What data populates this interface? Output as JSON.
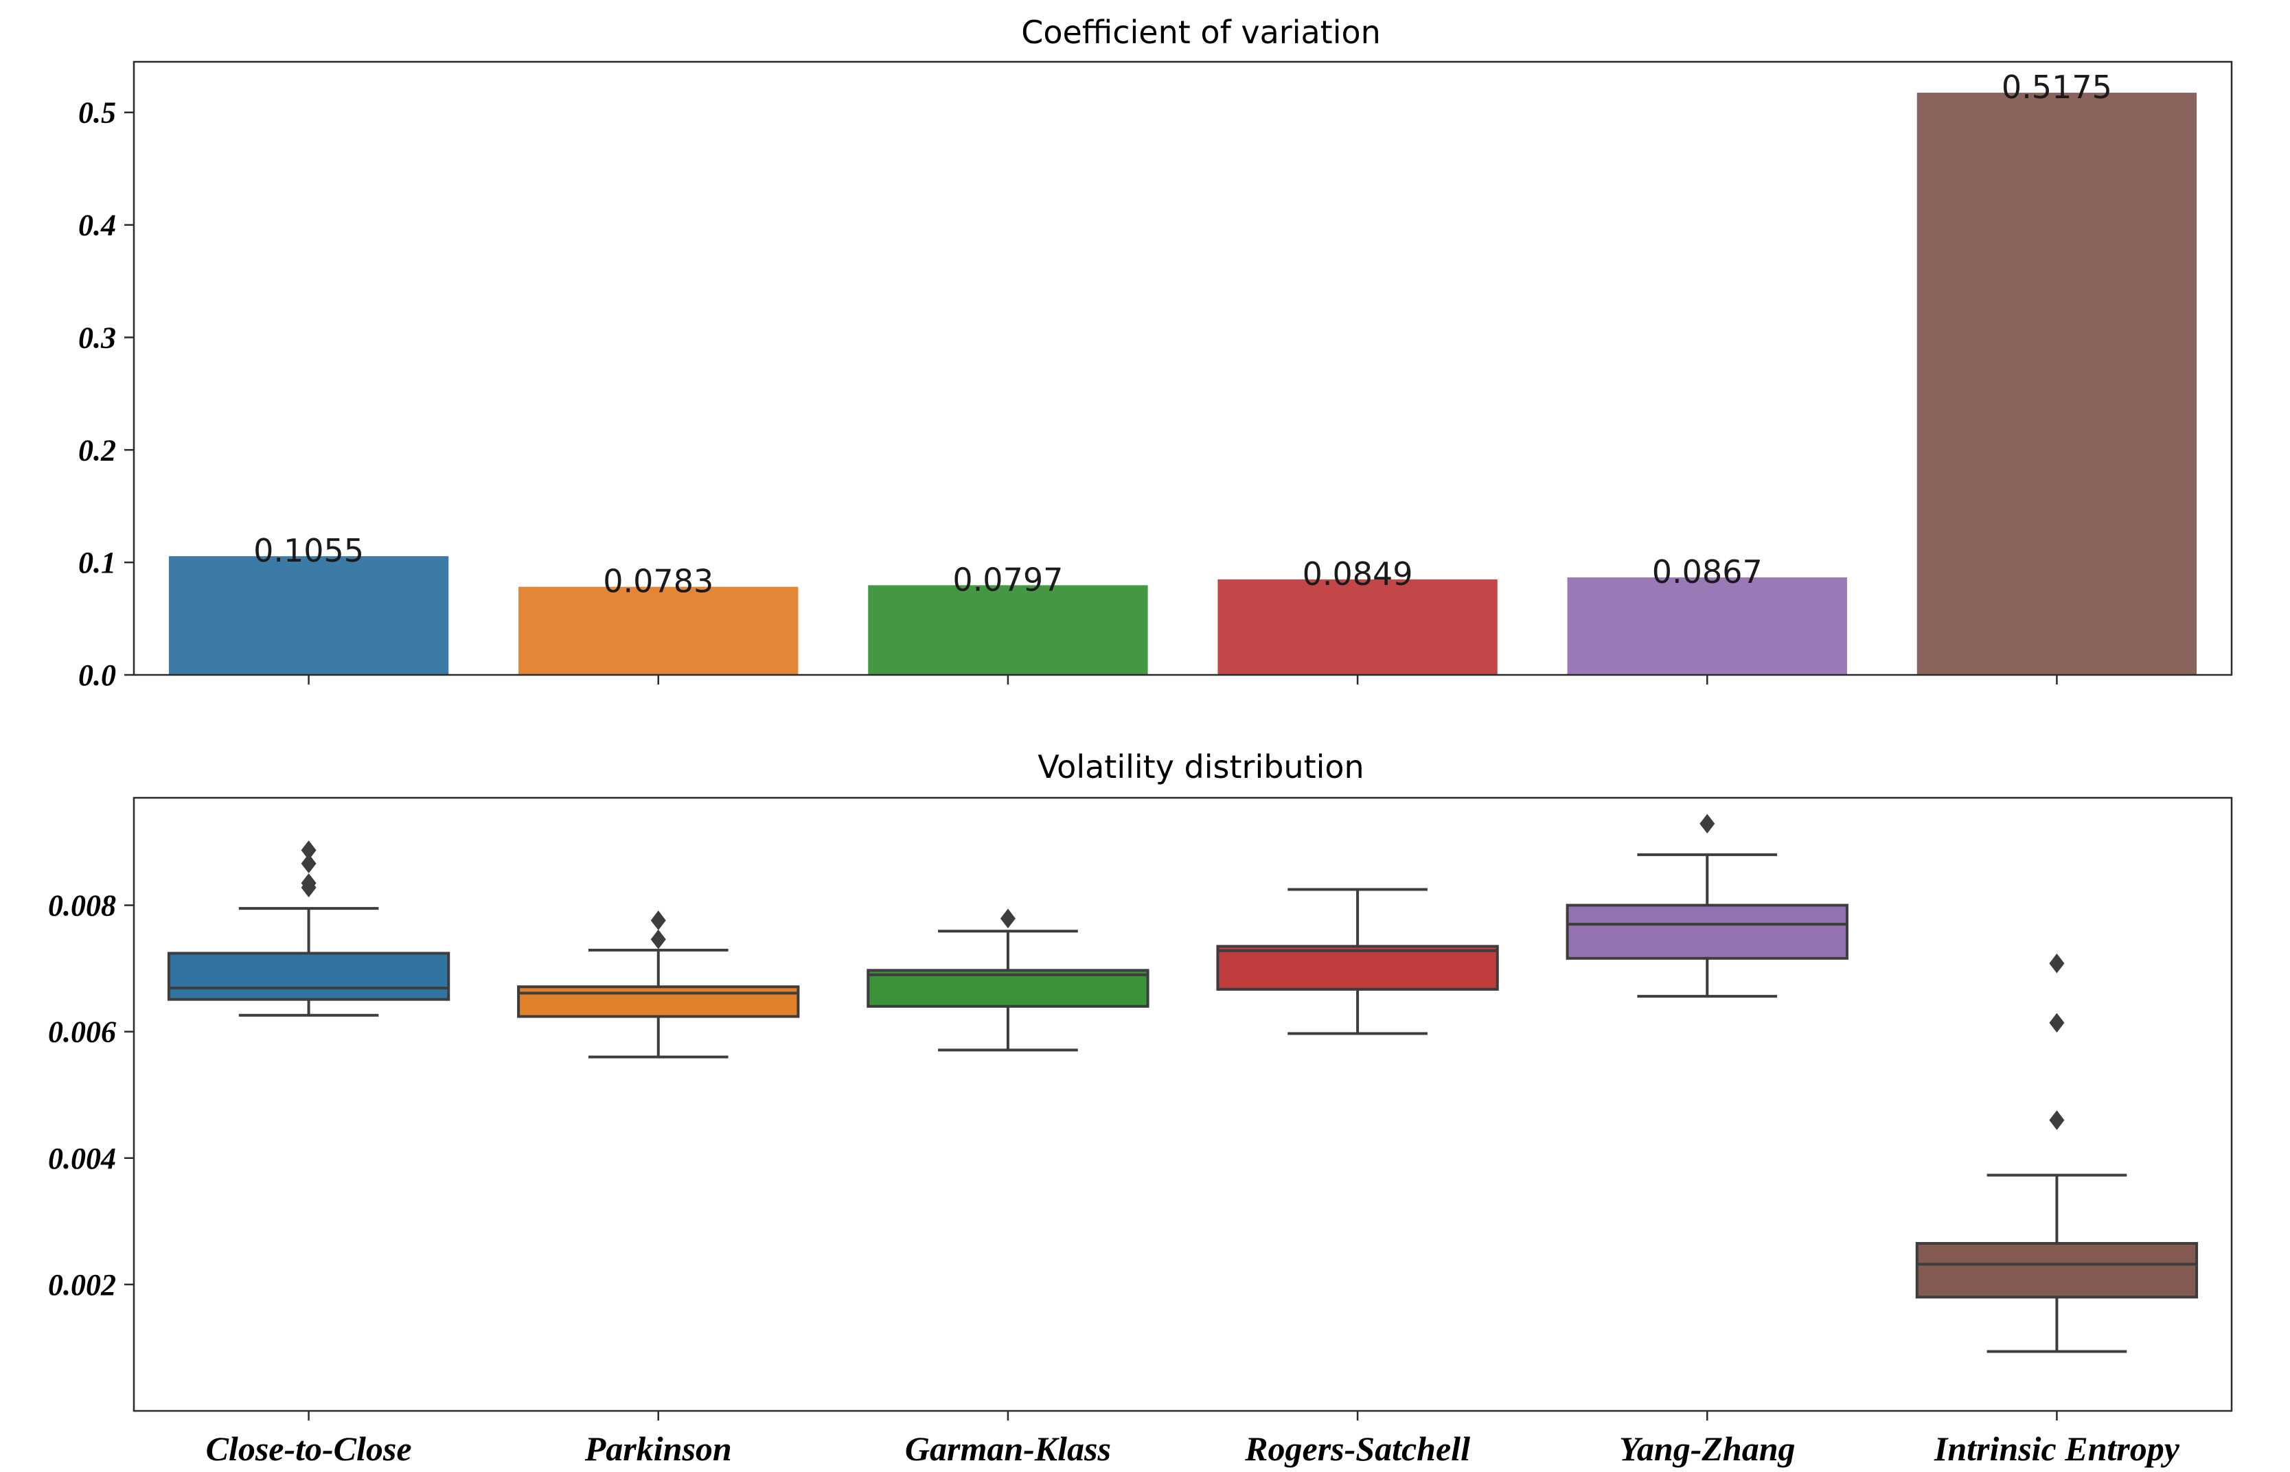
{
  "colors": [
    "#3274a1",
    "#e1812c",
    "#3a923a",
    "#c03d3e",
    "#9372b2",
    "#845b53"
  ],
  "chart_data": [
    {
      "type": "bar",
      "title": "Coefficient of variation",
      "categories": [
        "Close-to-Close",
        "Parkinson",
        "Garman-Klass",
        "Rogers-Satchell",
        "Yang-Zhang",
        "Intrinsic Entropy"
      ],
      "values": [
        0.1055,
        0.0783,
        0.0797,
        0.0849,
        0.0867,
        0.5175
      ],
      "value_labels": [
        "0.1055",
        "0.0783",
        "0.0797",
        "0.0849",
        "0.0867",
        "0.5175"
      ],
      "yticks": [
        "0.0",
        "0.1",
        "0.2",
        "0.3",
        "0.4",
        "0.5"
      ],
      "ylim": [
        0,
        0.545
      ],
      "xlabel": "",
      "ylabel": "",
      "grid": false
    },
    {
      "type": "box",
      "title": "Volatility distribution",
      "categories": [
        "Close-to-Close",
        "Parkinson",
        "Garman-Klass",
        "Rogers-Satchell",
        "Yang-Zhang",
        "Intrinsic Entropy"
      ],
      "series": [
        {
          "whisker_low": 0.00626,
          "q1": 0.00651,
          "median": 0.00669,
          "q3": 0.00724,
          "whisker_high": 0.00795,
          "outliers": [
            0.00828,
            0.00835,
            0.00866,
            0.00887
          ]
        },
        {
          "whisker_low": 0.0056,
          "q1": 0.00624,
          "median": 0.00661,
          "q3": 0.00671,
          "whisker_high": 0.00729,
          "outliers": [
            0.00746,
            0.00776
          ]
        },
        {
          "whisker_low": 0.00571,
          "q1": 0.0064,
          "median": 0.0069,
          "q3": 0.00697,
          "whisker_high": 0.00759,
          "outliers": [
            0.00779
          ]
        },
        {
          "whisker_low": 0.00597,
          "q1": 0.00667,
          "median": 0.00728,
          "q3": 0.00735,
          "whisker_high": 0.00825,
          "outliers": []
        },
        {
          "whisker_low": 0.00656,
          "q1": 0.00716,
          "median": 0.0077,
          "q3": 0.008,
          "whisker_high": 0.0088,
          "outliers": [
            0.00929
          ]
        },
        {
          "whisker_low": 0.00094,
          "q1": 0.0018,
          "median": 0.00232,
          "q3": 0.00265,
          "whisker_high": 0.00373,
          "outliers": [
            0.0046,
            0.00614,
            0.00708
          ]
        }
      ],
      "yticks": [
        "0.002",
        "0.004",
        "0.006",
        "0.008"
      ],
      "ytick_values": [
        0.002,
        0.004,
        0.006,
        0.008
      ],
      "ylim": [
        0.0,
        0.0097
      ],
      "xlabel": "",
      "ylabel": "",
      "grid": false
    }
  ]
}
